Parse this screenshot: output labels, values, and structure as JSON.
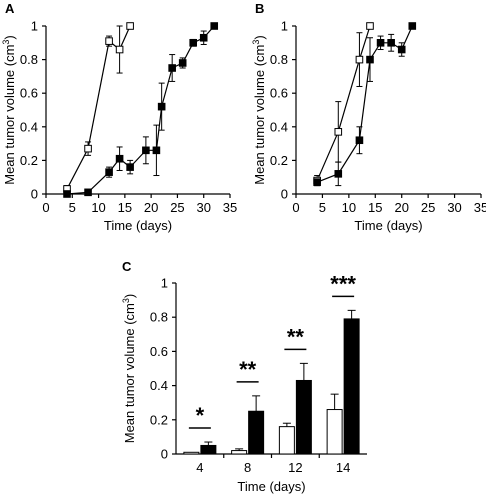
{
  "chart_data": [
    {
      "panel": "A",
      "type": "line",
      "xlabel": "Time (days)",
      "ylabel_main": "Mean tumor volume (cm",
      "ylabel_sup": "3",
      "ylabel_end": ")",
      "xlim": [
        0,
        35
      ],
      "ylim": [
        0,
        1
      ],
      "xticks": [
        0,
        5,
        10,
        15,
        20,
        25,
        30,
        35
      ],
      "yticks": [
        0,
        0.2,
        0.4,
        0.6,
        0.8,
        1
      ],
      "ytick_labels": [
        "0",
        "0.2",
        "0.4",
        "0.6",
        "0.8",
        "1"
      ],
      "series": [
        {
          "marker": "open-square",
          "x": [
            4,
            8,
            12,
            14,
            16
          ],
          "y": [
            0.03,
            0.27,
            0.91,
            0.86,
            1.0
          ],
          "err": [
            0.02,
            0.04,
            0.03,
            0.14,
            0
          ]
        },
        {
          "marker": "filled-square",
          "x": [
            4,
            8,
            12,
            14,
            16,
            19,
            21,
            22,
            24,
            26,
            28,
            30,
            32
          ],
          "y": [
            0.0,
            0.01,
            0.13,
            0.21,
            0.16,
            0.26,
            0.26,
            0.52,
            0.75,
            0.78,
            0.9,
            0.93,
            1.0
          ],
          "err": [
            0.01,
            0.01,
            0.03,
            0.07,
            0.04,
            0.08,
            0.15,
            0.14,
            0.08,
            0.03,
            0.02,
            0.04,
            0
          ]
        }
      ]
    },
    {
      "panel": "B",
      "type": "line",
      "xlabel": "Time (days)",
      "ylabel_main": "Mean tumor volume (cm",
      "ylabel_sup": "3",
      "ylabel_end": ")",
      "xlim": [
        0,
        35
      ],
      "ylim": [
        0,
        1
      ],
      "xticks": [
        0,
        5,
        10,
        15,
        20,
        25,
        30,
        35
      ],
      "yticks": [
        0,
        0.2,
        0.4,
        0.6,
        0.8,
        1
      ],
      "ytick_labels": [
        "0",
        "0.2",
        "0.4",
        "0.6",
        "0.8",
        "1"
      ],
      "series": [
        {
          "marker": "open-square",
          "x": [
            4,
            8,
            12,
            14
          ],
          "y": [
            0.08,
            0.37,
            0.8,
            1.0
          ],
          "err": [
            0.03,
            0.18,
            0.16,
            0
          ]
        },
        {
          "marker": "filled-square",
          "x": [
            4,
            8,
            12,
            14,
            16,
            18,
            20,
            22
          ],
          "y": [
            0.07,
            0.12,
            0.32,
            0.8,
            0.9,
            0.9,
            0.86,
            1.0
          ],
          "err": [
            0.02,
            0.07,
            0.08,
            0.13,
            0.04,
            0.05,
            0.04,
            0
          ]
        }
      ]
    },
    {
      "panel": "C",
      "type": "bar",
      "xlabel": "Time (days)",
      "ylabel_main": "Mean tumor volume (cm",
      "ylabel_sup": "3",
      "ylabel_end": ")",
      "categories": [
        "4",
        "8",
        "12",
        "14"
      ],
      "ylim": [
        0,
        1
      ],
      "yticks": [
        0,
        0.2,
        0.4,
        0.6,
        0.8,
        1
      ],
      "ytick_labels": [
        "0",
        "0.2",
        "0.4",
        "0.6",
        "0.8",
        "1"
      ],
      "series": [
        {
          "fill": "white",
          "values": [
            0.01,
            0.02,
            0.16,
            0.26
          ],
          "err": [
            0.0,
            0.01,
            0.02,
            0.09
          ]
        },
        {
          "fill": "black",
          "values": [
            0.05,
            0.25,
            0.43,
            0.79
          ],
          "err": [
            0.02,
            0.09,
            0.1,
            0.05
          ]
        }
      ],
      "significance": [
        "*",
        "**",
        "**",
        "***"
      ]
    }
  ],
  "colors": {
    "ink": "#000000",
    "open_fill": "#ffffff"
  }
}
